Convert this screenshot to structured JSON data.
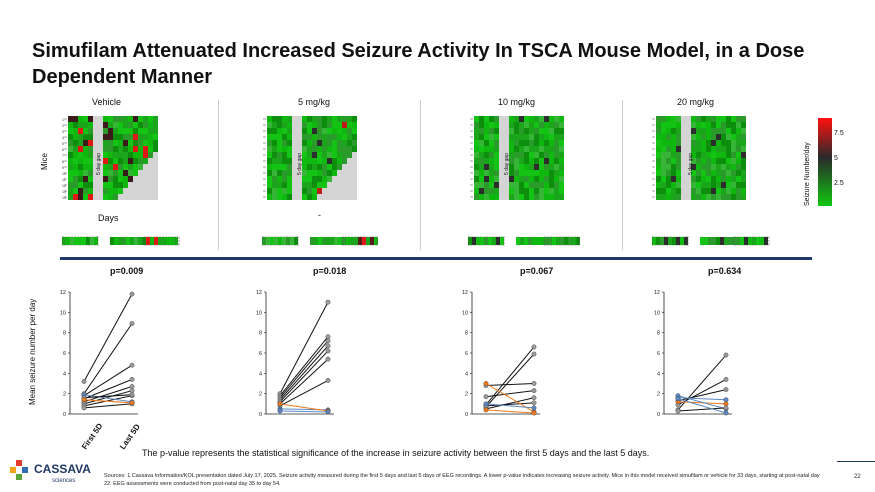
{
  "slide": {
    "title": "Simufilam Attenuated Increased Seizure Activity In TSCA Mouse Model, in a Dose Dependent Manner",
    "page_number": "22",
    "caption": "The p-value represents the statistical significance of the increase in seizure activity between the first 5 days and the last 5 days.",
    "footer": "Sources: 1.Cassava Information/KOL presentation dated July 17, 2025. Seizure activity measured during the first 5 days and last 5 days of EEG recordings. A lower p-value indicates increasing seizure activity.  Mice in this model received simufilam or vehicle for 33 days, starting at post-natal day 22. EEG assessments were conducted from post-natal day 35 to day 54.",
    "logo": {
      "name": "CASSAVA",
      "sub": "sciences"
    }
  },
  "heatmaps": {
    "mice_label": "Mice",
    "days_label": "Days",
    "gap_label": "5 day gap",
    "colorbar_label": "Seizure Number/day",
    "colorbar_ticks": [
      "7.5",
      "5",
      "2.5"
    ],
    "groups": [
      {
        "label": "Vehicle"
      },
      {
        "label": "5 mg/kg"
      },
      {
        "label": "10 mg/kg"
      },
      {
        "label": "20 mg/kg"
      }
    ],
    "mouse_numbers": [
      "1",
      "2",
      "3",
      "4",
      "5",
      "6",
      "7",
      "8",
      "9",
      "10",
      "11",
      "12",
      "13",
      "14"
    ]
  },
  "plots": {
    "ylabel": "Mean seizure number per day",
    "xtick_first": "First 5D",
    "xtick_last": "Last 5D",
    "yticks": [
      "12",
      "10",
      "8",
      "6",
      "4",
      "2",
      "0"
    ],
    "pvalues": [
      "p=0.009",
      "p=0.018",
      "p=0.067",
      "p=0.634"
    ]
  },
  "colors": {
    "title": "#111111",
    "accent": "#203864",
    "green": "#1aa51a",
    "red": "#e01818",
    "orange": "#f07a1c",
    "blue": "#5b87c5"
  },
  "chart_data": [
    {
      "type": "line",
      "title": "",
      "group": "Vehicle",
      "x": [
        "First 5D",
        "Last 5D"
      ],
      "ylim": [
        0,
        12
      ],
      "series": [
        {
          "values": [
            3.2,
            11.8
          ]
        },
        {
          "values": [
            2.0,
            8.9
          ]
        },
        {
          "values": [
            1.8,
            4.8
          ]
        },
        {
          "values": [
            1.5,
            3.4
          ]
        },
        {
          "values": [
            1.2,
            2.7
          ]
        },
        {
          "values": [
            1.0,
            2.3
          ]
        },
        {
          "values": [
            0.8,
            1.8
          ]
        },
        {
          "values": [
            1.9,
            1.2
          ]
        },
        {
          "values": [
            0.6,
            1.0
          ]
        },
        {
          "values": [
            1.6,
            1.9
          ]
        },
        {
          "values": [
            1.4,
            1.1
          ]
        }
      ]
    },
    {
      "type": "line",
      "title": "",
      "group": "5 mg/kg",
      "x": [
        "First 5D",
        "Last 5D"
      ],
      "ylim": [
        0,
        12
      ],
      "series": [
        {
          "values": [
            2.0,
            11.0
          ]
        },
        {
          "values": [
            1.8,
            7.6
          ]
        },
        {
          "values": [
            1.6,
            7.2
          ]
        },
        {
          "values": [
            1.4,
            6.7
          ]
        },
        {
          "values": [
            1.2,
            6.2
          ]
        },
        {
          "values": [
            1.0,
            5.4
          ]
        },
        {
          "values": [
            0.8,
            3.3
          ]
        },
        {
          "values": [
            0.5,
            0.4
          ]
        },
        {
          "values": [
            1.0,
            0.3
          ]
        },
        {
          "values": [
            0.3,
            0.2
          ]
        }
      ]
    },
    {
      "type": "line",
      "title": "",
      "group": "10 mg/kg",
      "x": [
        "First 5D",
        "Last 5D"
      ],
      "ylim": [
        0,
        12
      ],
      "series": [
        {
          "values": [
            0.9,
            6.6
          ]
        },
        {
          "values": [
            0.7,
            5.9
          ]
        },
        {
          "values": [
            2.8,
            3.0
          ]
        },
        {
          "values": [
            1.7,
            2.3
          ]
        },
        {
          "values": [
            0.5,
            1.6
          ]
        },
        {
          "values": [
            0.8,
            1.1
          ]
        },
        {
          "values": [
            3.0,
            0.2
          ]
        },
        {
          "values": [
            1.0,
            0.6
          ]
        },
        {
          "values": [
            0.4,
            0.1
          ]
        }
      ]
    },
    {
      "type": "line",
      "title": "",
      "group": "20 mg/kg",
      "x": [
        "First 5D",
        "Last 5D"
      ],
      "ylim": [
        0,
        12
      ],
      "series": [
        {
          "values": [
            0.4,
            5.8
          ]
        },
        {
          "values": [
            0.9,
            3.4
          ]
        },
        {
          "values": [
            1.3,
            2.4
          ]
        },
        {
          "values": [
            1.6,
            1.4
          ]
        },
        {
          "values": [
            1.2,
            1.0
          ]
        },
        {
          "values": [
            1.8,
            0.5
          ]
        },
        {
          "values": [
            0.3,
            0.6
          ]
        },
        {
          "values": [
            1.5,
            0.1
          ]
        }
      ]
    }
  ]
}
